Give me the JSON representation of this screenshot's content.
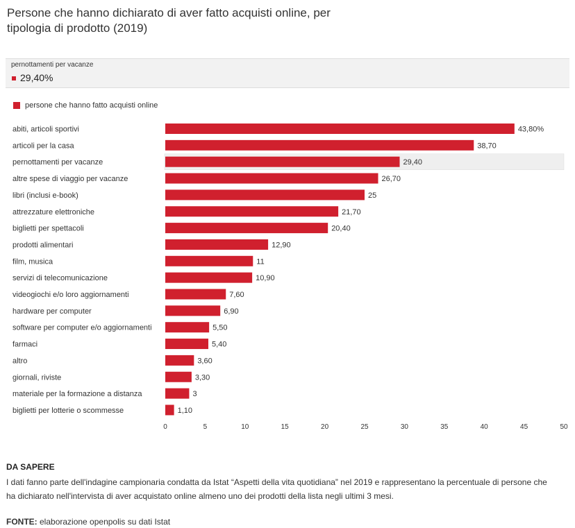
{
  "title": "Persone che hanno dichiarato di aver fatto acquisti online, per tipologia di prodotto (2019)",
  "tooltip": {
    "label": "pernottamenti per vacanze",
    "value": "29,40%"
  },
  "colors": {
    "bar": "#d0202e",
    "highlight": "#efefef"
  },
  "chart_data": {
    "type": "bar",
    "orientation": "horizontal",
    "title": "Persone che hanno dichiarato di aver fatto acquisti online, per tipologia di prodotto (2019)",
    "legend": [
      "persone che hanno fatto acquisti online"
    ],
    "highlighted": "pernottamenti per vacanze",
    "categories": [
      "abiti, articoli sportivi",
      "articoli per la casa",
      "pernottamenti per vacanze",
      "altre spese di viaggio per vacanze",
      "libri (inclusi e-book)",
      "attrezzature elettroniche",
      "biglietti per spettacoli",
      "prodotti alimentari",
      "film, musica",
      "servizi di telecomunicazione",
      "videogiochi e/o loro aggiornamenti",
      "hardware per computer",
      "software per computer e/o aggiornamenti",
      "farmaci",
      "altro",
      "giornali, riviste",
      "materiale per la formazione a distanza",
      "biglietti per lotterie o scommesse"
    ],
    "values": [
      43.8,
      38.7,
      29.4,
      26.7,
      25,
      21.7,
      20.4,
      12.9,
      11,
      10.9,
      7.6,
      6.9,
      5.5,
      5.4,
      3.6,
      3.3,
      3,
      1.1
    ],
    "value_labels": [
      "43,80%",
      "38,70",
      "29,40",
      "26,70",
      "25",
      "21,70",
      "20,40",
      "12,90",
      "11",
      "10,90",
      "7,60",
      "6,90",
      "5,50",
      "5,40",
      "3,60",
      "3,30",
      "3",
      "1,10"
    ],
    "xlim": [
      0,
      50
    ],
    "xticks": [
      0,
      5,
      10,
      15,
      20,
      25,
      30,
      35,
      40,
      45,
      50
    ]
  },
  "note": {
    "title": "DA SAPERE",
    "text": "I dati fanno parte dell'indagine campionaria condatta da Istat “Aspetti della vita quotidiana” nel 2019 e rappresentano la percentuale di persone che ha dichiarato nell'intervista di aver acquistato online almeno uno dei prodotti della lista negli ultimi 3 mesi."
  },
  "source": {
    "label": "FONTE:",
    "text": " elaborazione openpolis su dati Istat"
  }
}
